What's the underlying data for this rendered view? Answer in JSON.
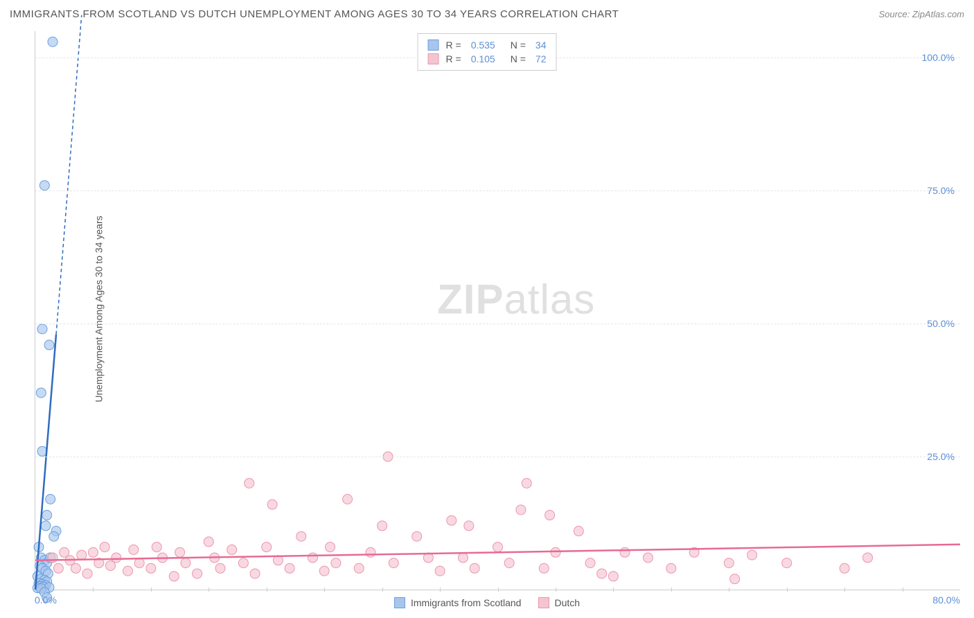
{
  "header": {
    "title": "IMMIGRANTS FROM SCOTLAND VS DUTCH UNEMPLOYMENT AMONG AGES 30 TO 34 YEARS CORRELATION CHART",
    "source": "Source: ZipAtlas.com"
  },
  "watermark": {
    "bold": "ZIP",
    "light": "atlas"
  },
  "chart": {
    "type": "scatter-with-regression",
    "ylabel": "Unemployment Among Ages 30 to 34 years",
    "xlim": [
      0,
      80
    ],
    "ylim": [
      0,
      105
    ],
    "xticks_minor": [
      5,
      10,
      15,
      20,
      25,
      30,
      35,
      40,
      45,
      50,
      55,
      60,
      65,
      70,
      75
    ],
    "xtick_labels": {
      "left": "0.0%",
      "right": "80.0%"
    },
    "yticks": [
      {
        "value": 25,
        "label": "25.0%"
      },
      {
        "value": 50,
        "label": "50.0%"
      },
      {
        "value": 75,
        "label": "75.0%"
      },
      {
        "value": 100,
        "label": "100.0%"
      }
    ],
    "grid_color": "#e5e5e5",
    "background_color": "#ffffff",
    "series": [
      {
        "name": "Immigrants from Scotland",
        "color_fill": "#a8c6ec",
        "color_stroke": "#6b9fde",
        "line_color": "#2e6bc0",
        "marker_radius": 7,
        "points": [
          [
            1.5,
            103
          ],
          [
            0.8,
            76
          ],
          [
            0.6,
            49
          ],
          [
            1.2,
            46
          ],
          [
            0.5,
            37
          ],
          [
            0.6,
            26
          ],
          [
            1.3,
            17
          ],
          [
            1.0,
            14
          ],
          [
            1.8,
            11
          ],
          [
            0.9,
            12
          ],
          [
            1.6,
            10
          ],
          [
            0.3,
            8
          ],
          [
            0.5,
            6
          ],
          [
            0.8,
            5.5
          ],
          [
            1.0,
            5
          ],
          [
            1.3,
            6
          ],
          [
            0.4,
            4.5
          ],
          [
            0.6,
            4
          ],
          [
            0.9,
            3.5
          ],
          [
            1.1,
            3
          ],
          [
            0.2,
            2.5
          ],
          [
            0.5,
            2
          ],
          [
            0.8,
            1.8
          ],
          [
            1.0,
            1.5
          ],
          [
            0.3,
            1.2
          ],
          [
            0.6,
            1.0
          ],
          [
            0.9,
            0.8
          ],
          [
            0.4,
            0.6
          ],
          [
            0.7,
            0.5
          ],
          [
            1.2,
            0.4
          ],
          [
            0.2,
            0.3
          ],
          [
            0.5,
            0.2
          ],
          [
            0.8,
            -0.5
          ],
          [
            1.0,
            -1.5
          ]
        ],
        "regression": {
          "x1": 0,
          "y1": 0,
          "x2": 1.8,
          "y2": 48,
          "dash_x1": 1.8,
          "dash_y1": 48,
          "dash_x2": 4.0,
          "dash_y2": 108
        },
        "R": "0.535",
        "N": "34"
      },
      {
        "name": "Dutch",
        "color_fill": "#f5c4d1",
        "color_stroke": "#ed94ae",
        "line_color": "#e76a94",
        "marker_radius": 7,
        "points": [
          [
            1.5,
            6
          ],
          [
            2,
            4
          ],
          [
            2.5,
            7
          ],
          [
            3,
            5.5
          ],
          [
            3.5,
            4
          ],
          [
            4,
            6.5
          ],
          [
            4.5,
            3
          ],
          [
            5,
            7
          ],
          [
            5.5,
            5
          ],
          [
            6,
            8
          ],
          [
            6.5,
            4.5
          ],
          [
            7,
            6
          ],
          [
            8,
            3.5
          ],
          [
            8.5,
            7.5
          ],
          [
            9,
            5
          ],
          [
            10,
            4
          ],
          [
            10.5,
            8
          ],
          [
            11,
            6
          ],
          [
            12,
            2.5
          ],
          [
            12.5,
            7
          ],
          [
            13,
            5
          ],
          [
            14,
            3
          ],
          [
            15,
            9
          ],
          [
            15.5,
            6
          ],
          [
            16,
            4
          ],
          [
            17,
            7.5
          ],
          [
            18,
            5
          ],
          [
            18.5,
            20
          ],
          [
            19,
            3
          ],
          [
            20,
            8
          ],
          [
            20.5,
            16
          ],
          [
            21,
            5.5
          ],
          [
            22,
            4
          ],
          [
            23,
            10
          ],
          [
            24,
            6
          ],
          [
            25,
            3.5
          ],
          [
            25.5,
            8
          ],
          [
            26,
            5
          ],
          [
            27,
            17
          ],
          [
            28,
            4
          ],
          [
            29,
            7
          ],
          [
            30,
            12
          ],
          [
            30.5,
            25
          ],
          [
            31,
            5
          ],
          [
            33,
            10
          ],
          [
            34,
            6
          ],
          [
            35,
            3.5
          ],
          [
            36,
            13
          ],
          [
            37,
            6
          ],
          [
            37.5,
            12
          ],
          [
            38,
            4
          ],
          [
            40,
            8
          ],
          [
            41,
            5
          ],
          [
            42,
            15
          ],
          [
            42.5,
            20
          ],
          [
            44,
            4
          ],
          [
            44.5,
            14
          ],
          [
            45,
            7
          ],
          [
            47,
            11
          ],
          [
            48,
            5
          ],
          [
            49,
            3
          ],
          [
            50,
            2.5
          ],
          [
            51,
            7
          ],
          [
            53,
            6
          ],
          [
            55,
            4
          ],
          [
            57,
            7
          ],
          [
            60,
            5
          ],
          [
            60.5,
            2
          ],
          [
            62,
            6.5
          ],
          [
            65,
            5
          ],
          [
            70,
            4
          ],
          [
            72,
            6
          ]
        ],
        "regression": {
          "x1": 0,
          "y1": 5.5,
          "x2": 80,
          "y2": 8.5
        },
        "R": "0.105",
        "N": "72"
      }
    ]
  },
  "legend_top": {
    "rows": [
      {
        "swatch_fill": "#a8c6ec",
        "swatch_stroke": "#6b9fde",
        "r_label": "R =",
        "r_value": "0.535",
        "n_label": "N =",
        "n_value": "34"
      },
      {
        "swatch_fill": "#f5c4d1",
        "swatch_stroke": "#ed94ae",
        "r_label": "R =",
        "r_value": "0.105",
        "n_label": "N =",
        "n_value": "72"
      }
    ]
  },
  "legend_bottom": {
    "items": [
      {
        "swatch_fill": "#a8c6ec",
        "swatch_stroke": "#6b9fde",
        "label": "Immigrants from Scotland"
      },
      {
        "swatch_fill": "#f5c4d1",
        "swatch_stroke": "#ed94ae",
        "label": "Dutch"
      }
    ]
  }
}
